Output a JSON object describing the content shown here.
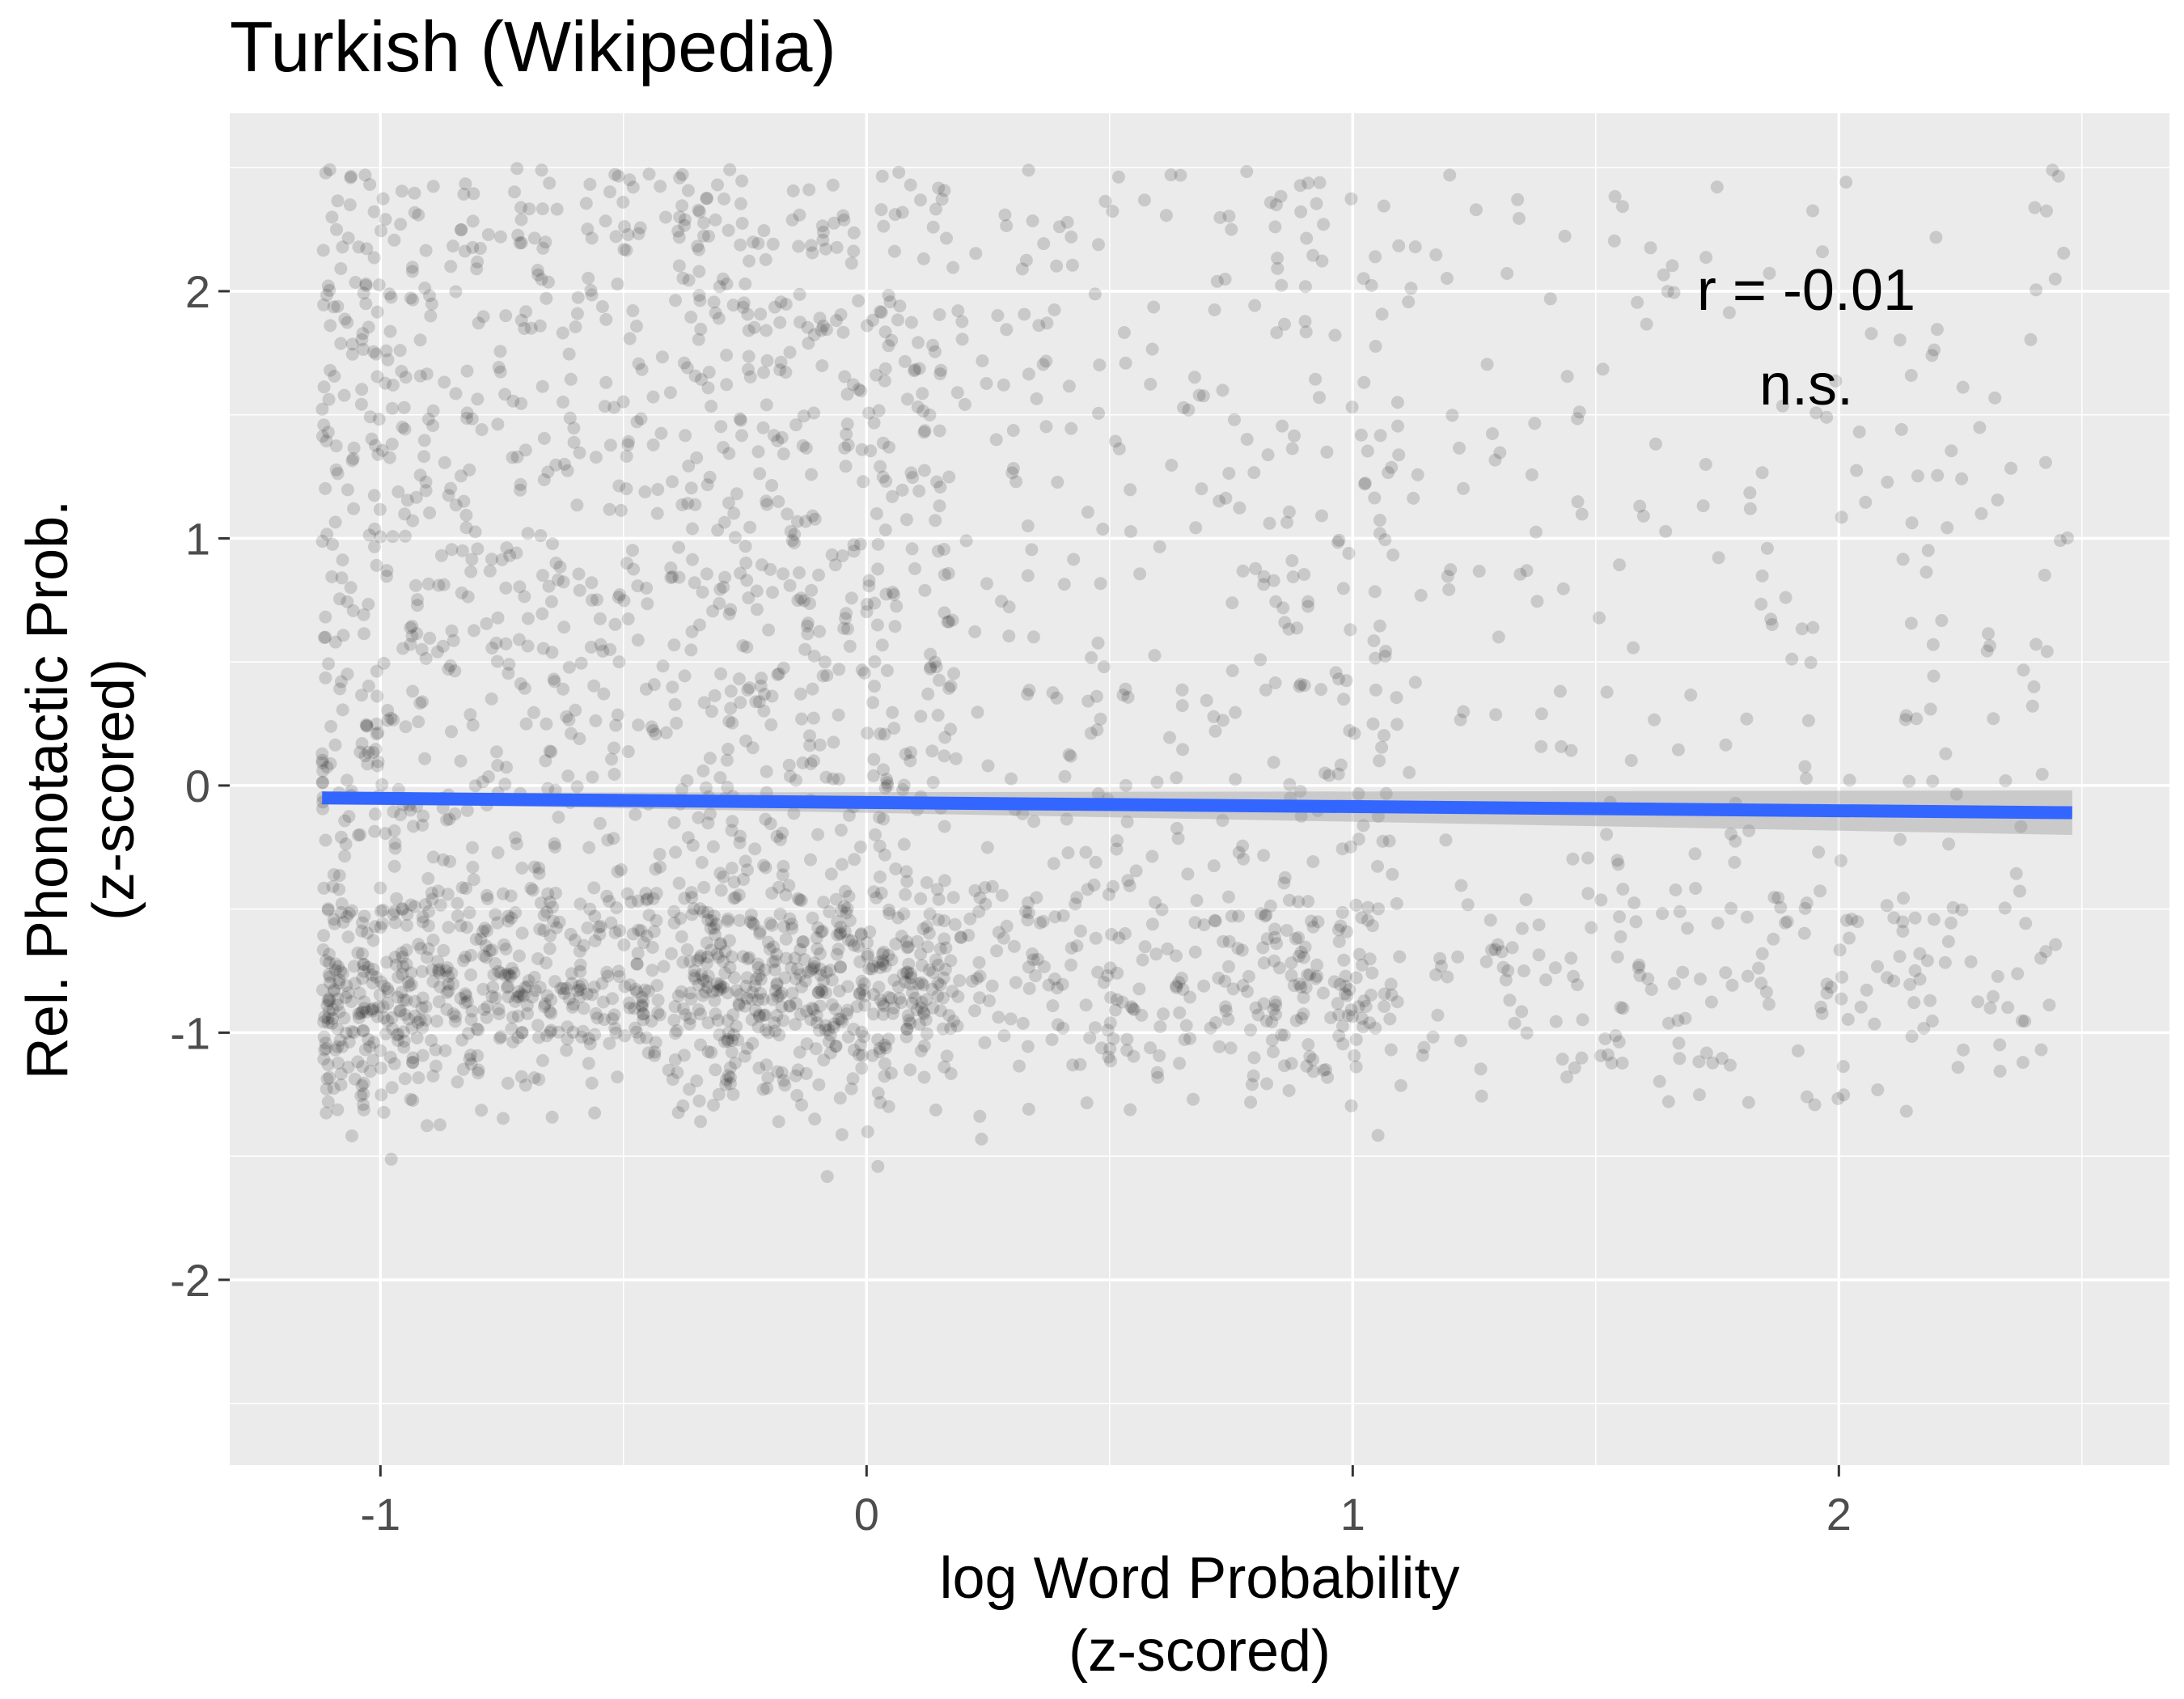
{
  "chart_data": {
    "type": "scatter",
    "title": "Turkish (Wikipedia)",
    "xlabel_line1": "log Word Probability",
    "xlabel_line2": "(z-scored)",
    "ylabel_line1": "Rel. Phonotactic Prob.",
    "ylabel_line2": "(z-scored)",
    "xlim": [
      -1.31,
      2.68
    ],
    "ylim": [
      -2.75,
      2.72
    ],
    "x_ticks": [
      -1,
      0,
      1,
      2
    ],
    "x_tick_labels": [
      "-1",
      "0",
      "1",
      "2"
    ],
    "y_ticks": [
      -2,
      -1,
      0,
      1,
      2
    ],
    "y_tick_labels": [
      "-2",
      "-1",
      "0",
      "1",
      "2"
    ],
    "grid": true,
    "annotation_line1": "r = -0.01",
    "annotation_line2": "n.s.",
    "annotation_position": [
      1.95,
      1.88
    ],
    "regression": {
      "x_start": -1.12,
      "y_start": -0.05,
      "x_end": 2.48,
      "y_end": -0.11,
      "ci_halfwidth_start": 0.02,
      "ci_halfwidth_end": 0.09
    },
    "points_description": "approximately 3000 semi-transparent points, densest for x in [-1.1, 0.5] with a concentration near y = -0.9",
    "colors": {
      "panel": "#EBEBEB",
      "grid_major": "#FFFFFF",
      "points": "#000000",
      "fit_line": "#3366FF",
      "ci_band": "#999999",
      "tick_text": "#4D4D4D",
      "title_text": "#000000"
    }
  }
}
